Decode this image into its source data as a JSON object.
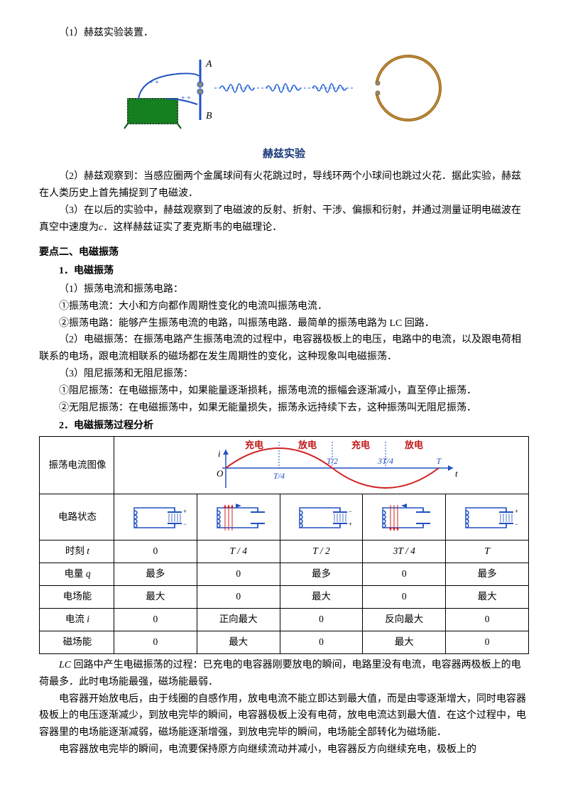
{
  "intro": {
    "line1": "（1）赫兹实验装置．",
    "caption": "赫兹实验",
    "line2": "（2）赫兹观察到：当感应圈两个金属球间有火花跳过时，导线环两个小球间也跳过火花．据此实验，赫兹在人类历史上首先捕捉到了电磁波．",
    "line3_a": "（3）在以后的实验中，赫兹观察到了电磁波的反射、折射、干涉、偏振和衍射，并通过测量证明电磁波在真空中速度为",
    "line3_c": "c",
    "line3_b": "．这样赫兹证实了麦克斯韦的电磁理论．"
  },
  "section2": {
    "title": "要点二、电磁振荡",
    "h1": "1．电磁振荡",
    "p1": "（1）振荡电流和振荡电路：",
    "p2": "①振荡电流：大小和方向都作周期性变化的电流叫振荡电流．",
    "p3": "②振荡电路：能够产生振荡电流的电路，叫振荡电路．最简单的振荡电路为 LC 回路．",
    "p4": "（2）电磁振荡：在振荡电路产生振荡电流的过程中，电容器极板上的电压，电路中的电流，以及跟电荷相联系的电场，跟电流相联系的磁场都在发生周期性的变化，这种现象叫电磁振荡．",
    "p5": "（3）阻尼振荡和无阻尼振荡：",
    "p6": "①阻尼振荡：在电磁振荡中，如果能量逐渐损耗，振荡电流的振幅会逐渐减小，直至停止振荡．",
    "p7": "②无阻尼振荡：在电磁振荡中，如果无能量损失，振荡永远持续下去，这种振荡叫无阻尼振荡．",
    "h2": "2．电磁振荡过程分析"
  },
  "table": {
    "row1_label": "振荡电流图像",
    "row2_label": "电路状态",
    "rows": [
      {
        "label_a": "时刻",
        "label_i": "t",
        "cells": [
          "0",
          "T / 4",
          "T / 2",
          "3T / 4",
          "T"
        ]
      },
      {
        "label_a": "电量",
        "label_i": "q",
        "cells": [
          "最多",
          "0",
          "最多",
          "0",
          "最多"
        ]
      },
      {
        "label_a": "电场能",
        "label_i": "",
        "cells": [
          "最大",
          "0",
          "最大",
          "0",
          "最大"
        ]
      },
      {
        "label_a": "电流",
        "label_i": "i",
        "cells": [
          "0",
          "正向最大",
          "0",
          "反向最大",
          "0"
        ]
      },
      {
        "label_a": "磁场能",
        "label_i": "",
        "cells": [
          "0",
          "最大",
          "0",
          "最大",
          "0"
        ]
      }
    ],
    "chart": {
      "labels": {
        "charge1": "充电",
        "discharge1": "放电",
        "charge2": "充电",
        "discharge2": "放电"
      },
      "axis": {
        "i": "i",
        "O": "O",
        "t4": "T/4",
        "t2": "T/2",
        "t34": "3T/4",
        "T": "T",
        "t": "t"
      },
      "colors": {
        "sine": "#d02020",
        "axis": "#2050c0",
        "label": "#c01818",
        "ticklabel": "#2050c0"
      }
    }
  },
  "after": {
    "p1_a": "LC",
    "p1_b": " 回路中产生电磁振荡的过程：已充电的电容器刚要放电的瞬间，电路里没有电流，电容器两极板上的电荷最多．此时电场能最强，磁场能最弱．",
    "p2": "电容器开始放电后，由于线圈的自感作用，放电电流不能立即达到最大值，而是由零逐渐增大，同时电容器极板上的电压逐渐减少，到放电完毕的瞬间，电容器极板上没有电荷，放电电流达到最大值．在这个过程中，电容器里的电场能逐渐减弱，磁场能逐渐增强，到放电完毕的瞬间，电场能全部转化为磁场能．",
    "p3": "电容器放电完毕的瞬间，电流要保持原方向继续流动并减小，电容器反方向继续充电，极板上的"
  },
  "hertz_diagram": {
    "colors": {
      "coil": "#148020",
      "box": "#0a6018",
      "rod": "#2050c0",
      "wave": "#2060d8",
      "ring": "#9a6a1a",
      "plus": "#2050c0"
    },
    "labels": {
      "A": "A",
      "B": "B"
    }
  },
  "circuit": {
    "colors": {
      "wire": "#2050c0",
      "arrow": "#d02020",
      "plus": "#000"
    }
  }
}
